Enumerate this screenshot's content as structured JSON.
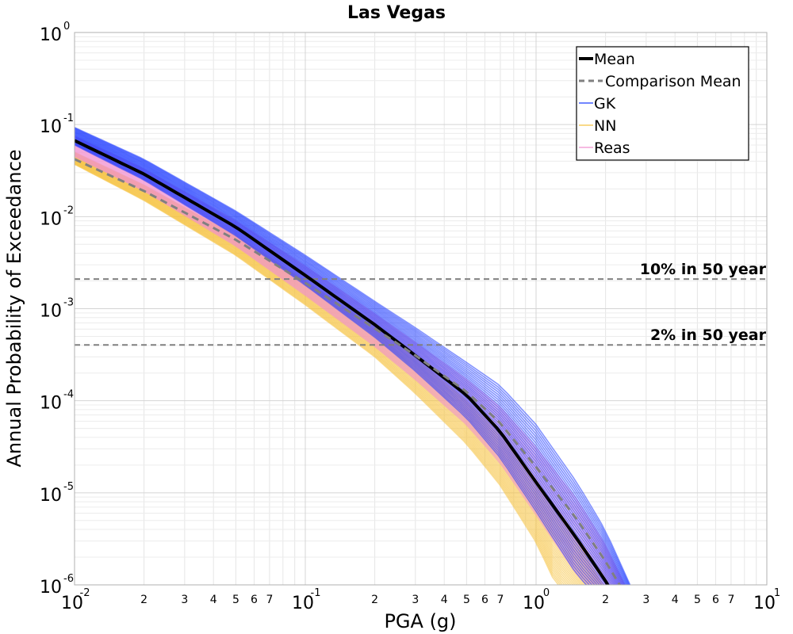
{
  "chart_data": {
    "type": "line",
    "title": "Las Vegas",
    "xlabel": "PGA (g)",
    "ylabel": "Annual Probability of Exceedance",
    "xscale": "log",
    "yscale": "log",
    "xlim": [
      0.01,
      10
    ],
    "ylim": [
      1e-06,
      1
    ],
    "grid": true,
    "legend_position": "top-right",
    "x_major_ticks": [
      {
        "value": 0.01,
        "base": "10",
        "exp": "-2"
      },
      {
        "value": 0.1,
        "base": "10",
        "exp": "-1"
      },
      {
        "value": 1,
        "base": "10",
        "exp": "0"
      },
      {
        "value": 10,
        "base": "10",
        "exp": "1"
      }
    ],
    "x_minor_ticks": [
      {
        "value": 0.02,
        "label": "2"
      },
      {
        "value": 0.03,
        "label": "3"
      },
      {
        "value": 0.04,
        "label": "4"
      },
      {
        "value": 0.05,
        "label": "5"
      },
      {
        "value": 0.06,
        "label": "6"
      },
      {
        "value": 0.07,
        "label": "7"
      },
      {
        "value": 0.2,
        "label": "2"
      },
      {
        "value": 0.3,
        "label": "3"
      },
      {
        "value": 0.4,
        "label": "4"
      },
      {
        "value": 0.5,
        "label": "5"
      },
      {
        "value": 0.6,
        "label": "6"
      },
      {
        "value": 0.7,
        "label": "7"
      },
      {
        "value": 2,
        "label": "2"
      },
      {
        "value": 3,
        "label": "3"
      },
      {
        "value": 4,
        "label": "4"
      },
      {
        "value": 5,
        "label": "5"
      },
      {
        "value": 6,
        "label": "6"
      },
      {
        "value": 7,
        "label": "7"
      }
    ],
    "y_major_ticks": [
      {
        "value": 1,
        "base": "10",
        "exp": "0"
      },
      {
        "value": 0.1,
        "base": "10",
        "exp": "-1"
      },
      {
        "value": 0.01,
        "base": "10",
        "exp": "-2"
      },
      {
        "value": 0.001,
        "base": "10",
        "exp": "-3"
      },
      {
        "value": 0.0001,
        "base": "10",
        "exp": "-4"
      },
      {
        "value": 1e-05,
        "base": "10",
        "exp": "-5"
      },
      {
        "value": 1e-06,
        "base": "10",
        "exp": "-6"
      }
    ],
    "reference_lines": [
      {
        "label": "10% in 50 year",
        "y": 0.0021,
        "color": "#808080"
      },
      {
        "label": "2% in 50 year",
        "y": 0.000404,
        "color": "#808080"
      }
    ],
    "series": [
      {
        "name": "Mean",
        "role": "mean",
        "color": "#000000",
        "style": "solid",
        "x": [
          0.01,
          0.02,
          0.05,
          0.1,
          0.2,
          0.3,
          0.5,
          0.7,
          1.0,
          1.5,
          2.0,
          2.3
        ],
        "y": [
          0.067,
          0.029,
          0.0077,
          0.0023,
          0.00067,
          0.00031,
          0.000115,
          4.6e-05,
          1.3e-05,
          3.2e-06,
          1.1e-06,
          6e-07
        ]
      },
      {
        "name": "Comparison Mean",
        "role": "comparison",
        "color": "#808080",
        "style": "dashed",
        "x": [
          0.01,
          0.02,
          0.05,
          0.1,
          0.2,
          0.3,
          0.5,
          0.7,
          1.0,
          1.5,
          2.0,
          2.6
        ],
        "y": [
          0.042,
          0.019,
          0.0056,
          0.0019,
          0.00061,
          0.00031,
          0.000125,
          5.7e-05,
          1.9e-05,
          5.2e-06,
          1.8e-06,
          6e-07
        ]
      },
      {
        "name": "GK",
        "role": "band",
        "color": "#1f3dff",
        "x": [
          0.01,
          0.02,
          0.05,
          0.1,
          0.2,
          0.3,
          0.5,
          0.7,
          1.0,
          1.5,
          2.0,
          2.8
        ],
        "y_upper": [
          0.093,
          0.042,
          0.0115,
          0.0038,
          0.0012,
          0.00062,
          0.00026,
          0.000145,
          5.5e-05,
          1.3e-05,
          3.9e-06,
          6e-07
        ],
        "y_lower": [
          0.06,
          0.025,
          0.0062,
          0.0018,
          0.00049,
          0.00021,
          6.5e-05,
          2.4e-05,
          6.3e-06,
          1.3e-06,
          6e-07,
          3e-07
        ]
      },
      {
        "name": "NN",
        "role": "band",
        "color": "#f5c242",
        "x": [
          0.01,
          0.02,
          0.05,
          0.1,
          0.2,
          0.3,
          0.5,
          0.7,
          1.0,
          1.2,
          1.5,
          2.0
        ],
        "y_upper": [
          0.05,
          0.022,
          0.0062,
          0.002,
          0.00062,
          0.00029,
          0.0001,
          4.2e-05,
          1.3e-05,
          6.5e-06,
          3e-06,
          9e-07
        ],
        "y_lower": [
          0.037,
          0.015,
          0.0038,
          0.0011,
          0.0003,
          0.00012,
          3.4e-05,
          1.2e-05,
          2.9e-06,
          1.1e-06,
          6e-07,
          3e-07
        ]
      },
      {
        "name": "Reas",
        "role": "band",
        "color": "#f090d0",
        "x": [
          0.01,
          0.02,
          0.05,
          0.1,
          0.2,
          0.3,
          0.5,
          0.7,
          1.0,
          1.5,
          2.0,
          2.6
        ],
        "y_upper": [
          0.075,
          0.033,
          0.009,
          0.0029,
          0.00088,
          0.00043,
          0.00017,
          8.5e-05,
          3.1e-05,
          8.5e-06,
          2.7e-06,
          7e-07
        ],
        "y_lower": [
          0.045,
          0.019,
          0.0048,
          0.0014,
          0.00039,
          0.00017,
          5.5e-05,
          2.1e-05,
          5.8e-06,
          1.3e-06,
          6e-07,
          3e-07
        ]
      }
    ],
    "legend": [
      {
        "label": "Mean",
        "color": "#000000",
        "style": "thick"
      },
      {
        "label": "Comparison Mean",
        "color": "#808080",
        "style": "dashed"
      },
      {
        "label": "GK",
        "color": "#1f3dff",
        "style": "thin"
      },
      {
        "label": "NN",
        "color": "#f5c242",
        "style": "thin"
      },
      {
        "label": "Reas",
        "color": "#f090d0",
        "style": "thin"
      }
    ]
  }
}
